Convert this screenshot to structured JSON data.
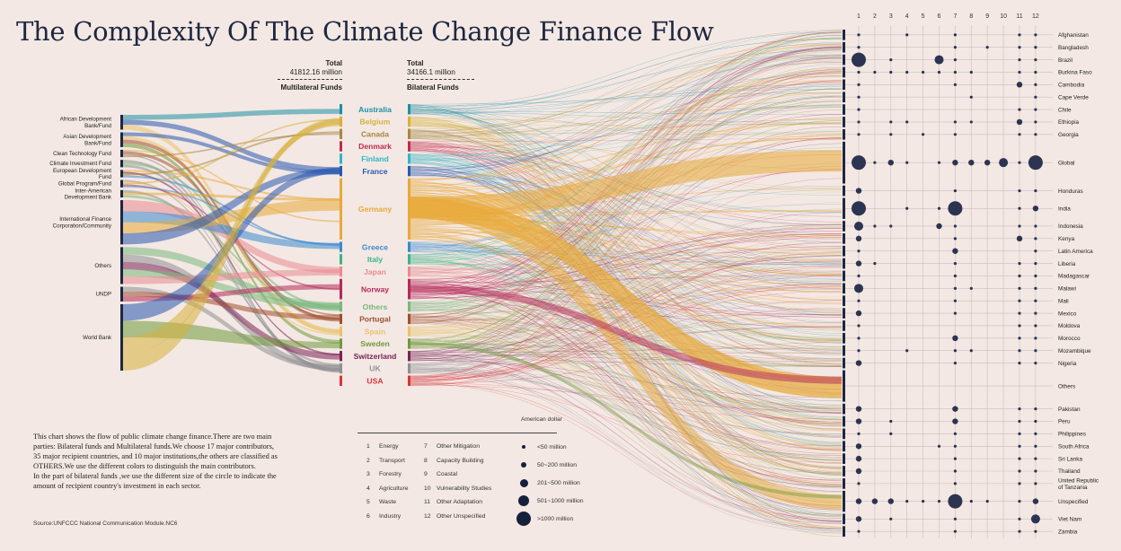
{
  "title": "The Complexity Of The Climate Change Finance Flow",
  "description": [
    "This chart shows the flow of public climate change finance.There are two main",
    "parties: Bilateral funds and Multilateral funds.We choose 17 major contributors,",
    "35 major recipient countries, and 10 major institutions,the others are classified as",
    "OTHERS.We use the different colors to distinguish the main contributors.",
    "In the part of bilateral funds ,we use the different size of the circle to indicate the",
    "amount of recipient country's investment in each sector."
  ],
  "source": "Source:UNFCCC National Communication Module.NC6",
  "totals": {
    "multilateral": {
      "label": "Total",
      "value": "41812.16 million",
      "name": "Multilateral Funds"
    },
    "bilateral": {
      "label": "Total",
      "value": "34166.1 million",
      "name": "Bilateral  Funds"
    }
  },
  "unit_label": "American dollar",
  "sector_legend": [
    {
      "num": "1",
      "name": "Energy"
    },
    {
      "num": "2",
      "name": "Transport"
    },
    {
      "num": "3",
      "name": "Forestry"
    },
    {
      "num": "4",
      "name": "Agriculture"
    },
    {
      "num": "5",
      "name": "Waste"
    },
    {
      "num": "6",
      "name": "Industry"
    },
    {
      "num": "7",
      "name": "Other  Mitigation"
    },
    {
      "num": "8",
      "name": "Capacity Building"
    },
    {
      "num": "9",
      "name": "Coastal"
    },
    {
      "num": "10",
      "name": "Vulnerability Studies"
    },
    {
      "num": "11",
      "name": "Other Adaptation"
    },
    {
      "num": "12",
      "name": "Other Unspecified"
    }
  ],
  "size_legend": [
    "<50 million",
    "50~200 million",
    "201~500 million",
    "501~1000 million",
    ">1000 million"
  ],
  "colors": {
    "background": "#f3e8e3",
    "node": "#1f2740",
    "dot": "#2b3450"
  },
  "chart_data": {
    "type": "sankey",
    "multilateral_funds": [
      {
        "name": "African Development Bank/Fund",
        "size": 2
      },
      {
        "name": "Asian Development Bank/Fund",
        "size": 2
      },
      {
        "name": "Clean Technology Fund",
        "size": 1
      },
      {
        "name": "Climate Investment Fund",
        "size": 1
      },
      {
        "name": "European Development Fund",
        "size": 1
      },
      {
        "name": "Global Program/Fund",
        "size": 1
      },
      {
        "name": "Inter-American Development Bank",
        "size": 1
      },
      {
        "name": "International Finance Corporation/Community",
        "size": 6
      },
      {
        "name": "Others",
        "size": 5
      },
      {
        "name": "UNDP",
        "size": 2
      },
      {
        "name": "World Bank",
        "size": 9
      }
    ],
    "contributors": [
      {
        "name": "Australia",
        "color": "#1e8fa6",
        "size": 1
      },
      {
        "name": "Belgium",
        "color": "#d6b13c",
        "size": 1
      },
      {
        "name": "Canada",
        "color": "#a8873f",
        "size": 1
      },
      {
        "name": "Denmark",
        "color": "#c12a4b",
        "size": 1
      },
      {
        "name": "Finland",
        "color": "#2fb6c8",
        "size": 1
      },
      {
        "name": "France",
        "color": "#2a58b0",
        "size": 1
      },
      {
        "name": "Germany",
        "color": "#e8a93a",
        "size": 6
      },
      {
        "name": "Greece",
        "color": "#3a8ad0",
        "size": 1
      },
      {
        "name": "Italy",
        "color": "#3bb38a",
        "size": 1
      },
      {
        "name": "Japan",
        "color": "#e98a92",
        "size": 1
      },
      {
        "name": "Norway",
        "color": "#b5295b",
        "size": 2
      },
      {
        "name": "Others",
        "color": "#79b87e",
        "size": 1
      },
      {
        "name": "Portugal",
        "color": "#a04f2e",
        "size": 1
      },
      {
        "name": "Spain",
        "color": "#e9c36c",
        "size": 1
      },
      {
        "name": "Sweden",
        "color": "#6f9a3c",
        "size": 1
      },
      {
        "name": "Switzerland",
        "color": "#7b2257",
        "size": 1
      },
      {
        "name": "UK",
        "color": "#8f8f96",
        "size": 1
      },
      {
        "name": "USA",
        "color": "#d8343b",
        "size": 1
      }
    ],
    "sectors": [
      "1",
      "2",
      "3",
      "4",
      "5",
      "6",
      "7",
      "8",
      "9",
      "10",
      "11",
      "12"
    ],
    "recipients": [
      {
        "name": "Afghanistan",
        "size": 1
      },
      {
        "name": "Bangladesh",
        "size": 1
      },
      {
        "name": "Brazil",
        "size": 1
      },
      {
        "name": "Burkina Faso",
        "size": 1
      },
      {
        "name": "Cambodia",
        "size": 1
      },
      {
        "name": "Cape Verde",
        "size": 1
      },
      {
        "name": "Chile",
        "size": 1
      },
      {
        "name": "Ethiopia",
        "size": 1
      },
      {
        "name": "Georgia",
        "size": 1
      },
      {
        "name": "Global",
        "size": 4
      },
      {
        "name": "Honduras",
        "size": 1
      },
      {
        "name": "India",
        "size": 2
      },
      {
        "name": "Indonesia",
        "size": 1
      },
      {
        "name": "Kenya",
        "size": 1
      },
      {
        "name": "Latin America",
        "size": 1
      },
      {
        "name": "Liberia",
        "size": 1
      },
      {
        "name": "Madagascar",
        "size": 1
      },
      {
        "name": "Malawi",
        "size": 1
      },
      {
        "name": "Mali",
        "size": 1
      },
      {
        "name": "Mexico",
        "size": 1
      },
      {
        "name": "Moldova",
        "size": 1
      },
      {
        "name": "Morocco",
        "size": 1
      },
      {
        "name": "Mozambique",
        "size": 1
      },
      {
        "name": "Nigeria",
        "size": 1
      },
      {
        "name": "Others",
        "size": 3
      },
      {
        "name": "Pakistan",
        "size": 1
      },
      {
        "name": "Peru",
        "size": 1
      },
      {
        "name": "Philippines",
        "size": 1
      },
      {
        "name": "South Africa",
        "size": 1
      },
      {
        "name": "Sri Lanka",
        "size": 1
      },
      {
        "name": "Thailand",
        "size": 1
      },
      {
        "name": "United Republic of Tanzania",
        "size": 1
      },
      {
        "name": "Unspecified",
        "size": 2
      },
      {
        "name": "Viet Nam",
        "size": 1
      },
      {
        "name": "Zambia",
        "size": 1
      }
    ],
    "investment_levels": [
      [
        1,
        0,
        0,
        1,
        0,
        0,
        1,
        0,
        0,
        0,
        1,
        1
      ],
      [
        1,
        0,
        0,
        0,
        0,
        0,
        1,
        0,
        1,
        0,
        1,
        1
      ],
      [
        4,
        0,
        1,
        0,
        0,
        3,
        1,
        0,
        0,
        0,
        1,
        1
      ],
      [
        1,
        1,
        1,
        1,
        1,
        1,
        1,
        1,
        0,
        0,
        1,
        1
      ],
      [
        1,
        0,
        0,
        0,
        0,
        0,
        1,
        0,
        0,
        0,
        2,
        1
      ],
      [
        1,
        0,
        0,
        0,
        0,
        0,
        0,
        1,
        0,
        0,
        0,
        1
      ],
      [
        1,
        0,
        0,
        0,
        0,
        0,
        0,
        0,
        0,
        0,
        1,
        1
      ],
      [
        1,
        0,
        1,
        1,
        0,
        0,
        1,
        1,
        0,
        0,
        2,
        1
      ],
      [
        1,
        0,
        1,
        0,
        1,
        0,
        1,
        0,
        0,
        0,
        1,
        1
      ],
      [
        4,
        1,
        2,
        1,
        0,
        1,
        2,
        2,
        2,
        3,
        1,
        4
      ],
      [
        2,
        0,
        0,
        0,
        0,
        0,
        1,
        0,
        0,
        0,
        1,
        1
      ],
      [
        4,
        0,
        0,
        1,
        0,
        1,
        4,
        0,
        0,
        0,
        1,
        2
      ],
      [
        3,
        1,
        1,
        0,
        0,
        2,
        1,
        0,
        0,
        0,
        1,
        1
      ],
      [
        2,
        0,
        0,
        0,
        0,
        0,
        1,
        0,
        0,
        0,
        2,
        1
      ],
      [
        1,
        0,
        0,
        0,
        0,
        0,
        2,
        0,
        0,
        0,
        0,
        1
      ],
      [
        2,
        1,
        0,
        0,
        0,
        0,
        1,
        0,
        0,
        0,
        1,
        1
      ],
      [
        1,
        0,
        0,
        0,
        0,
        0,
        1,
        0,
        0,
        0,
        1,
        1
      ],
      [
        3,
        0,
        0,
        0,
        0,
        0,
        1,
        1,
        0,
        0,
        1,
        1
      ],
      [
        1,
        0,
        0,
        0,
        0,
        0,
        1,
        0,
        0,
        0,
        1,
        1
      ],
      [
        2,
        0,
        0,
        0,
        0,
        0,
        1,
        0,
        0,
        0,
        1,
        1
      ],
      [
        1,
        0,
        0,
        0,
        0,
        0,
        0,
        0,
        0,
        0,
        1,
        1
      ],
      [
        1,
        0,
        0,
        0,
        0,
        0,
        2,
        0,
        0,
        0,
        1,
        1
      ],
      [
        1,
        0,
        0,
        1,
        0,
        0,
        1,
        1,
        0,
        0,
        1,
        1
      ],
      [
        2,
        0,
        0,
        0,
        0,
        0,
        1,
        0,
        0,
        0,
        1,
        1
      ],
      [
        0,
        0,
        0,
        0,
        0,
        0,
        0,
        0,
        0,
        0,
        0,
        0
      ],
      [
        2,
        0,
        0,
        0,
        0,
        0,
        2,
        0,
        0,
        0,
        1,
        1
      ],
      [
        2,
        0,
        1,
        0,
        0,
        0,
        2,
        0,
        0,
        0,
        1,
        1
      ],
      [
        1,
        0,
        1,
        0,
        0,
        0,
        1,
        0,
        0,
        0,
        1,
        1
      ],
      [
        2,
        0,
        0,
        0,
        0,
        1,
        1,
        0,
        0,
        0,
        1,
        1
      ],
      [
        2,
        0,
        0,
        0,
        0,
        0,
        1,
        0,
        0,
        0,
        1,
        1
      ],
      [
        2,
        0,
        0,
        0,
        0,
        0,
        1,
        0,
        0,
        0,
        1,
        1
      ],
      [
        1,
        0,
        0,
        0,
        0,
        0,
        1,
        0,
        0,
        0,
        1,
        1
      ],
      [
        2,
        2,
        2,
        1,
        1,
        1,
        4,
        1,
        1,
        0,
        1,
        2
      ],
      [
        2,
        0,
        1,
        0,
        0,
        0,
        1,
        0,
        0,
        0,
        1,
        3
      ],
      [
        1,
        0,
        0,
        0,
        0,
        0,
        1,
        0,
        0,
        0,
        1,
        1
      ]
    ]
  }
}
